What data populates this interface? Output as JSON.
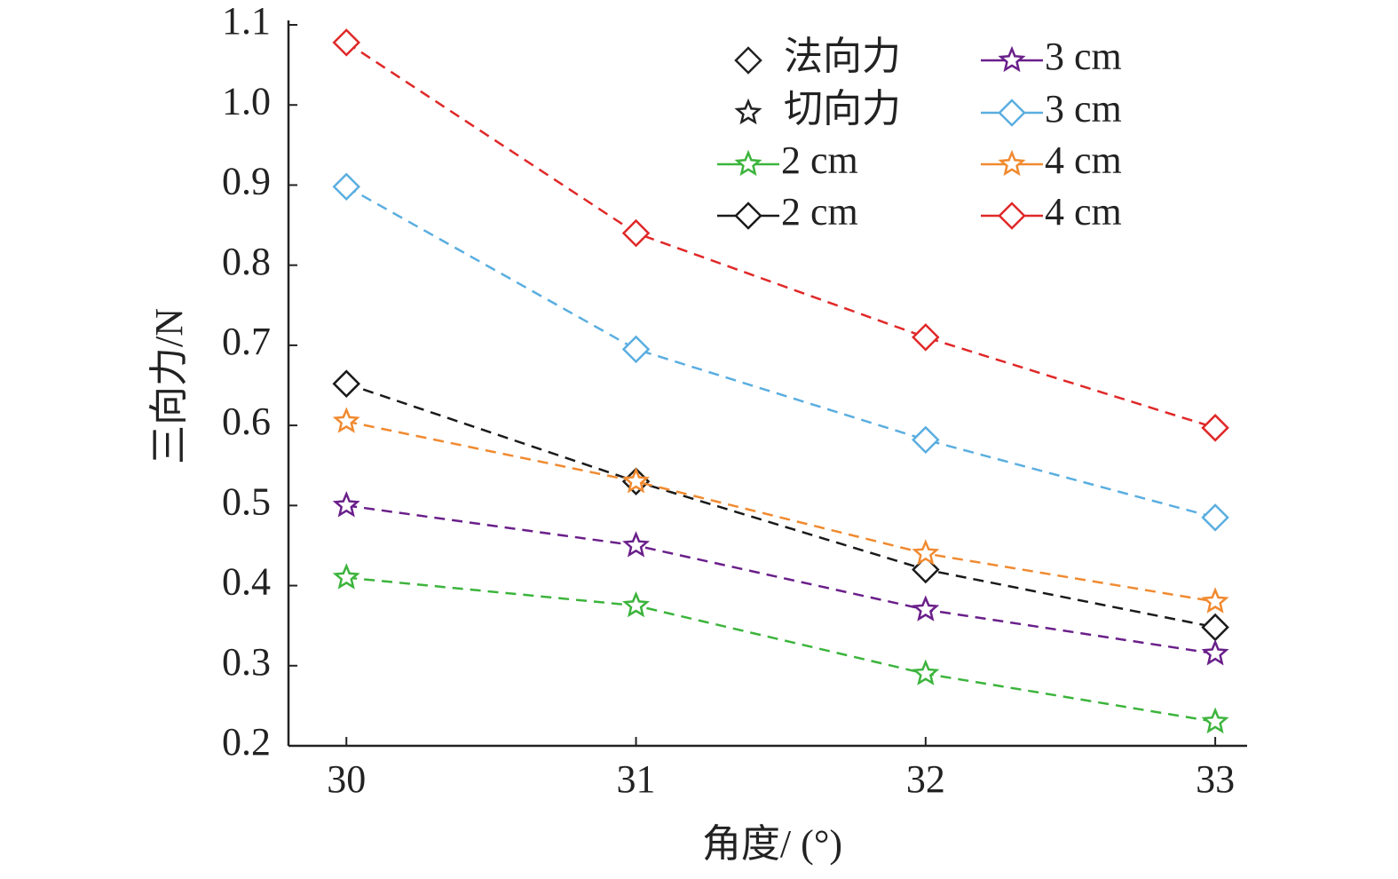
{
  "chart_data": {
    "type": "line",
    "x_label": "角度/ (°)",
    "y_label": "三向力/N",
    "x": [
      30,
      31,
      32,
      33
    ],
    "xlim": [
      29.8,
      33.11
    ],
    "xticks": [
      30,
      31,
      32,
      33
    ],
    "ylim": [
      0.2,
      1.1
    ],
    "yticks": [
      {
        "value": 0.2,
        "label": "0.2"
      },
      {
        "value": 0.3,
        "label": "0.3"
      },
      {
        "value": 0.4,
        "label": "0.4"
      },
      {
        "value": 0.5,
        "label": "0.5"
      },
      {
        "value": 0.6,
        "label": "0.6"
      },
      {
        "value": 0.7,
        "label": "0.7"
      },
      {
        "value": 0.8,
        "label": "0.8"
      },
      {
        "value": 0.9,
        "label": "0.9"
      },
      {
        "value": 1.0,
        "label": "1.0"
      },
      {
        "value": 1.1,
        "label": "1.1"
      }
    ],
    "legend_markers": [
      {
        "name": "法向力",
        "marker": "diamond"
      },
      {
        "name": "切向力",
        "marker": "star"
      }
    ],
    "series": [
      {
        "name": "2 cm",
        "color": "#3cb43c",
        "marker": "star",
        "values": [
          0.41,
          0.375,
          0.29,
          0.23
        ]
      },
      {
        "name": "2 cm",
        "color": "#1a1a1a",
        "marker": "diamond",
        "values": [
          0.652,
          0.53,
          0.42,
          0.348
        ]
      },
      {
        "name": "3 cm",
        "color": "#6a1f8a",
        "marker": "star",
        "values": [
          0.5,
          0.45,
          0.37,
          0.315
        ]
      },
      {
        "name": "3 cm",
        "color": "#5aaee0",
        "marker": "diamond",
        "values": [
          0.898,
          0.695,
          0.582,
          0.485
        ]
      },
      {
        "name": "4 cm",
        "color": "#f08a30",
        "marker": "star",
        "values": [
          0.605,
          0.53,
          0.44,
          0.38
        ]
      },
      {
        "name": "4 cm",
        "color": "#e02828",
        "marker": "diamond",
        "values": [
          1.078,
          0.84,
          0.71,
          0.597
        ]
      }
    ]
  }
}
